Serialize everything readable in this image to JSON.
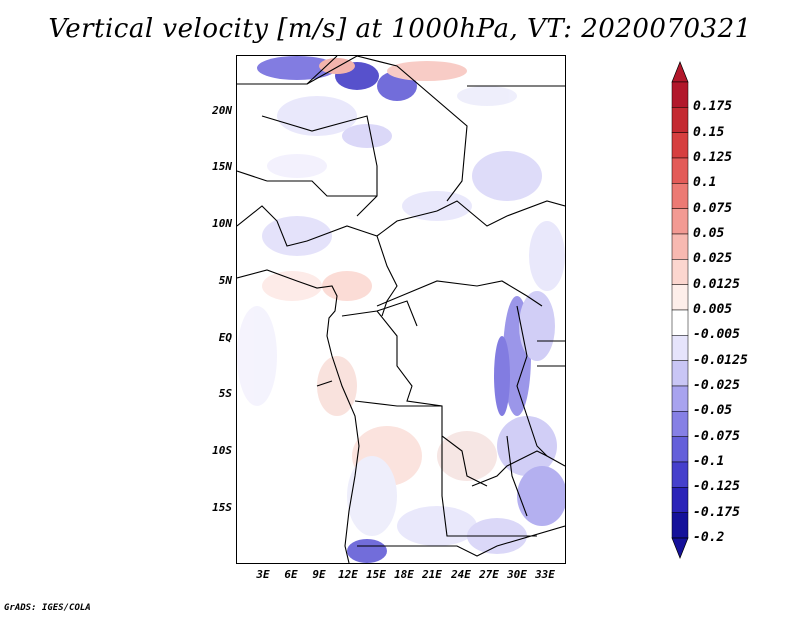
{
  "title": "Vertical velocity [m/s] at 1000hPa, VT: 2020070321",
  "footer": "GrADS: IGES/COLA",
  "lat_labels": [
    "20N",
    "15N",
    "10N",
    "5N",
    "EQ",
    "5S",
    "10S",
    "15S"
  ],
  "lon_labels": [
    "3E",
    "6E",
    "9E",
    "12E",
    "15E",
    "18E",
    "21E",
    "24E",
    "27E",
    "30E",
    "33E"
  ],
  "colorbar": {
    "levels": [
      "0.175",
      "0.15",
      "0.125",
      "0.1",
      "0.075",
      "0.05",
      "0.025",
      "0.0125",
      "0.005",
      "-0.005",
      "-0.0125",
      "-0.025",
      "-0.05",
      "-0.075",
      "-0.1",
      "-0.125",
      "-0.175",
      "-0.2"
    ],
    "colors": [
      "#b2182b",
      "#c42a31",
      "#d63f3f",
      "#e35b58",
      "#ec7a74",
      "#f29a93",
      "#f7b9b1",
      "#fbd6cf",
      "#fdeeea",
      "#ffffff",
      "#e6e4fb",
      "#c9c6f5",
      "#a8a3ee",
      "#8680e5",
      "#6560da",
      "#4640cc",
      "#2b23b8",
      "#15119a"
    ]
  }
}
